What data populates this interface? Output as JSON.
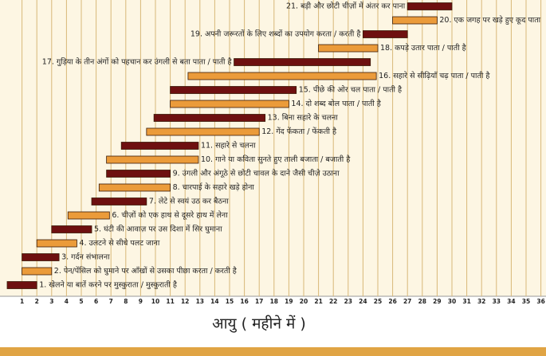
{
  "chart_data": {
    "type": "gantt",
    "x_label": "आयु ( महीने में )",
    "xlim": [
      0,
      36
    ],
    "xticks": [
      1,
      2,
      3,
      4,
      5,
      6,
      7,
      8,
      9,
      10,
      11,
      12,
      13,
      14,
      15,
      16,
      17,
      18,
      19,
      20,
      21,
      22,
      23,
      24,
      25,
      26,
      27,
      28,
      29,
      30,
      31,
      32,
      33,
      34,
      35,
      36
    ],
    "grid": true,
    "colors": [
      "#6e1010",
      "#eb9b3a"
    ],
    "tasks": [
      {
        "label": "1. खेलने या बातें करने पर मुस्कुराता / मुस्कुराती है",
        "start": 0,
        "end": 2
      },
      {
        "label": "2. पेन/पेंसिल को घुमाने पर आँखों से उसका पीछा करता / करती है",
        "start": 1,
        "end": 3
      },
      {
        "label": "3. गर्दन संभालना",
        "start": 1,
        "end": 3.5
      },
      {
        "label": "4. उलटने से सीधे पलट जाना",
        "start": 2,
        "end": 4.7
      },
      {
        "label": "5. घंटी की आवाज़ पर उस दिशा में सिर घुमाना",
        "start": 3,
        "end": 5.7
      },
      {
        "label": "6. चीज़ों को एक हाथ से दूसरे हाथ में लेना",
        "start": 4.1,
        "end": 6.9
      },
      {
        "label": "7. लेटे से स्वयं उठ कर बैठना",
        "start": 5.7,
        "end": 9.4
      },
      {
        "label": "8. चारपाई के सहारे खड़े होना",
        "start": 6.2,
        "end": 11
      },
      {
        "label": "9. उंगली और अंगूठे से छोटी चावल के दाने जैसी चीज़े उठाना",
        "start": 6.7,
        "end": 11
      },
      {
        "label": "10. गाने या कविता सुनते हुए ताली बजाता / बजाती है",
        "start": 6.7,
        "end": 12.9
      },
      {
        "label": "11. सहारे से चलना",
        "start": 7.7,
        "end": 12.9
      },
      {
        "label": "12. गेंद फेंकता / फेंकती है",
        "start": 9.4,
        "end": 17
      },
      {
        "label": "13. बिना सहारे के चलना",
        "start": 9.9,
        "end": 17.4
      },
      {
        "label": "14. दो शब्द बोल पाता / पाती है",
        "start": 11,
        "end": 19
      },
      {
        "label": "15. पीछे की ओर चल पाता / पाती है",
        "start": 11,
        "end": 19.5
      },
      {
        "label": "16. सहारे से सीढ़ियाँ चढ़ पाता / पाती है",
        "start": 12.2,
        "end": 24.9
      },
      {
        "label": "17. गुड़िया के तीन अंगों को पहचान कर उंगली से बता पाता / पाती है",
        "start": 15.3,
        "end": 24.5
      },
      {
        "label": "18. कपड़े उतार पाता / पाती है",
        "start": 21,
        "end": 25
      },
      {
        "label": "19. अपनी जरूरतों के लिए शब्दों का उपयोग करता / करती है",
        "start": 24,
        "end": 27
      },
      {
        "label": "20. एक जगह पर खड़े हुए कूद पाता",
        "start": 26,
        "end": 29
      },
      {
        "label": "21. बड़ी और छोटी चीज़ों में अंतर कर पाना",
        "start": 27,
        "end": 30
      }
    ]
  }
}
